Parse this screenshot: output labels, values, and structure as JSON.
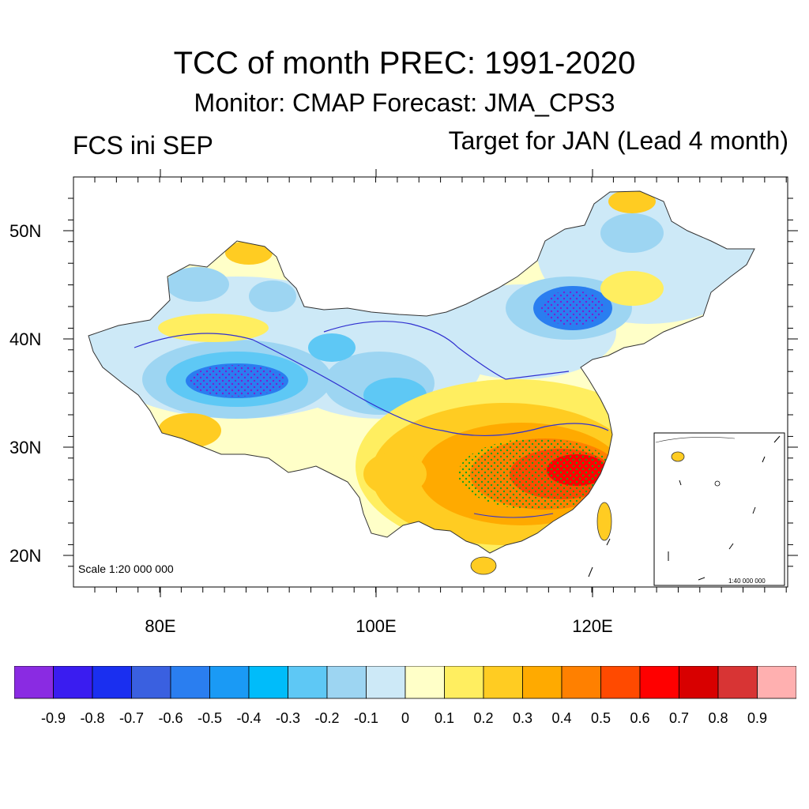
{
  "title": "TCC of month PREC: 1991-2020",
  "subtitle": "Monitor: CMAP   Forecast: JMA_CPS3",
  "left_label": "FCS ini SEP",
  "right_label": "Target for JAN (Lead 4 month)",
  "scale_label": "Scale 1:20 000 000",
  "inset_scale_label": "1:40 000 000",
  "lat_labels": [
    "50N",
    "40N",
    "30N",
    "20N"
  ],
  "lon_labels": [
    "80E",
    "100E",
    "120E"
  ],
  "colorbar": {
    "colors": [
      "#8a2be2",
      "#3a1cf0",
      "#1a2ff0",
      "#3a60e0",
      "#2a7ef0",
      "#1a9af5",
      "#00bcfa",
      "#5ec8f5",
      "#9dd5f2",
      "#cde9f7",
      "#ffffc8",
      "#ffee60",
      "#ffcc22",
      "#ffaa00",
      "#ff8000",
      "#ff4a00",
      "#ff0000",
      "#d80000",
      "#d83434",
      "#ffb0b0"
    ],
    "labels": [
      "-0.9",
      "-0.8",
      "-0.7",
      "-0.6",
      "-0.5",
      "-0.4",
      "-0.3",
      "-0.2",
      "-0.1",
      "0",
      "0.1",
      "0.2",
      "0.3",
      "0.4",
      "0.5",
      "0.6",
      "0.7",
      "0.8",
      "0.9"
    ]
  }
}
